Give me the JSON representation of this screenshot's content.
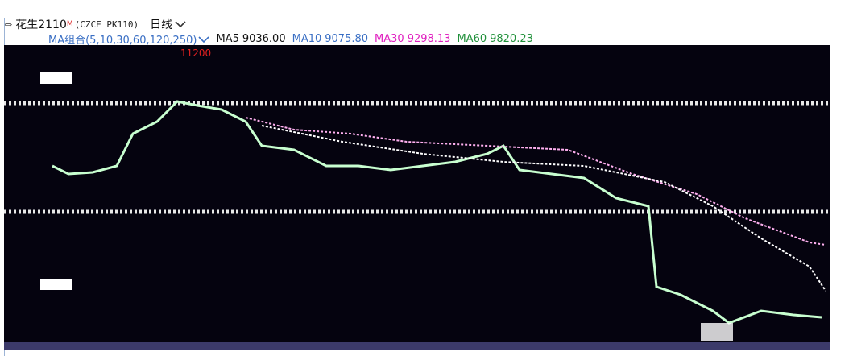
{
  "header": {
    "symbol": "花生2110",
    "marker": "M",
    "code": "(CZCE PK110)",
    "period": "日线"
  },
  "ma_bar": {
    "group": "MA组合(5,10,30,60,120,250)",
    "items": [
      {
        "name": "MA5",
        "value": "9036.00",
        "color": "#111111"
      },
      {
        "name": "MA10",
        "value": "9075.80",
        "color": "#3a6fc4"
      },
      {
        "name": "MA30",
        "value": "9298.13",
        "color": "#e020c0"
      },
      {
        "name": "MA60",
        "value": "9820.23",
        "color": "#20903a"
      }
    ]
  },
  "chart": {
    "high_label": "11200"
  }
}
